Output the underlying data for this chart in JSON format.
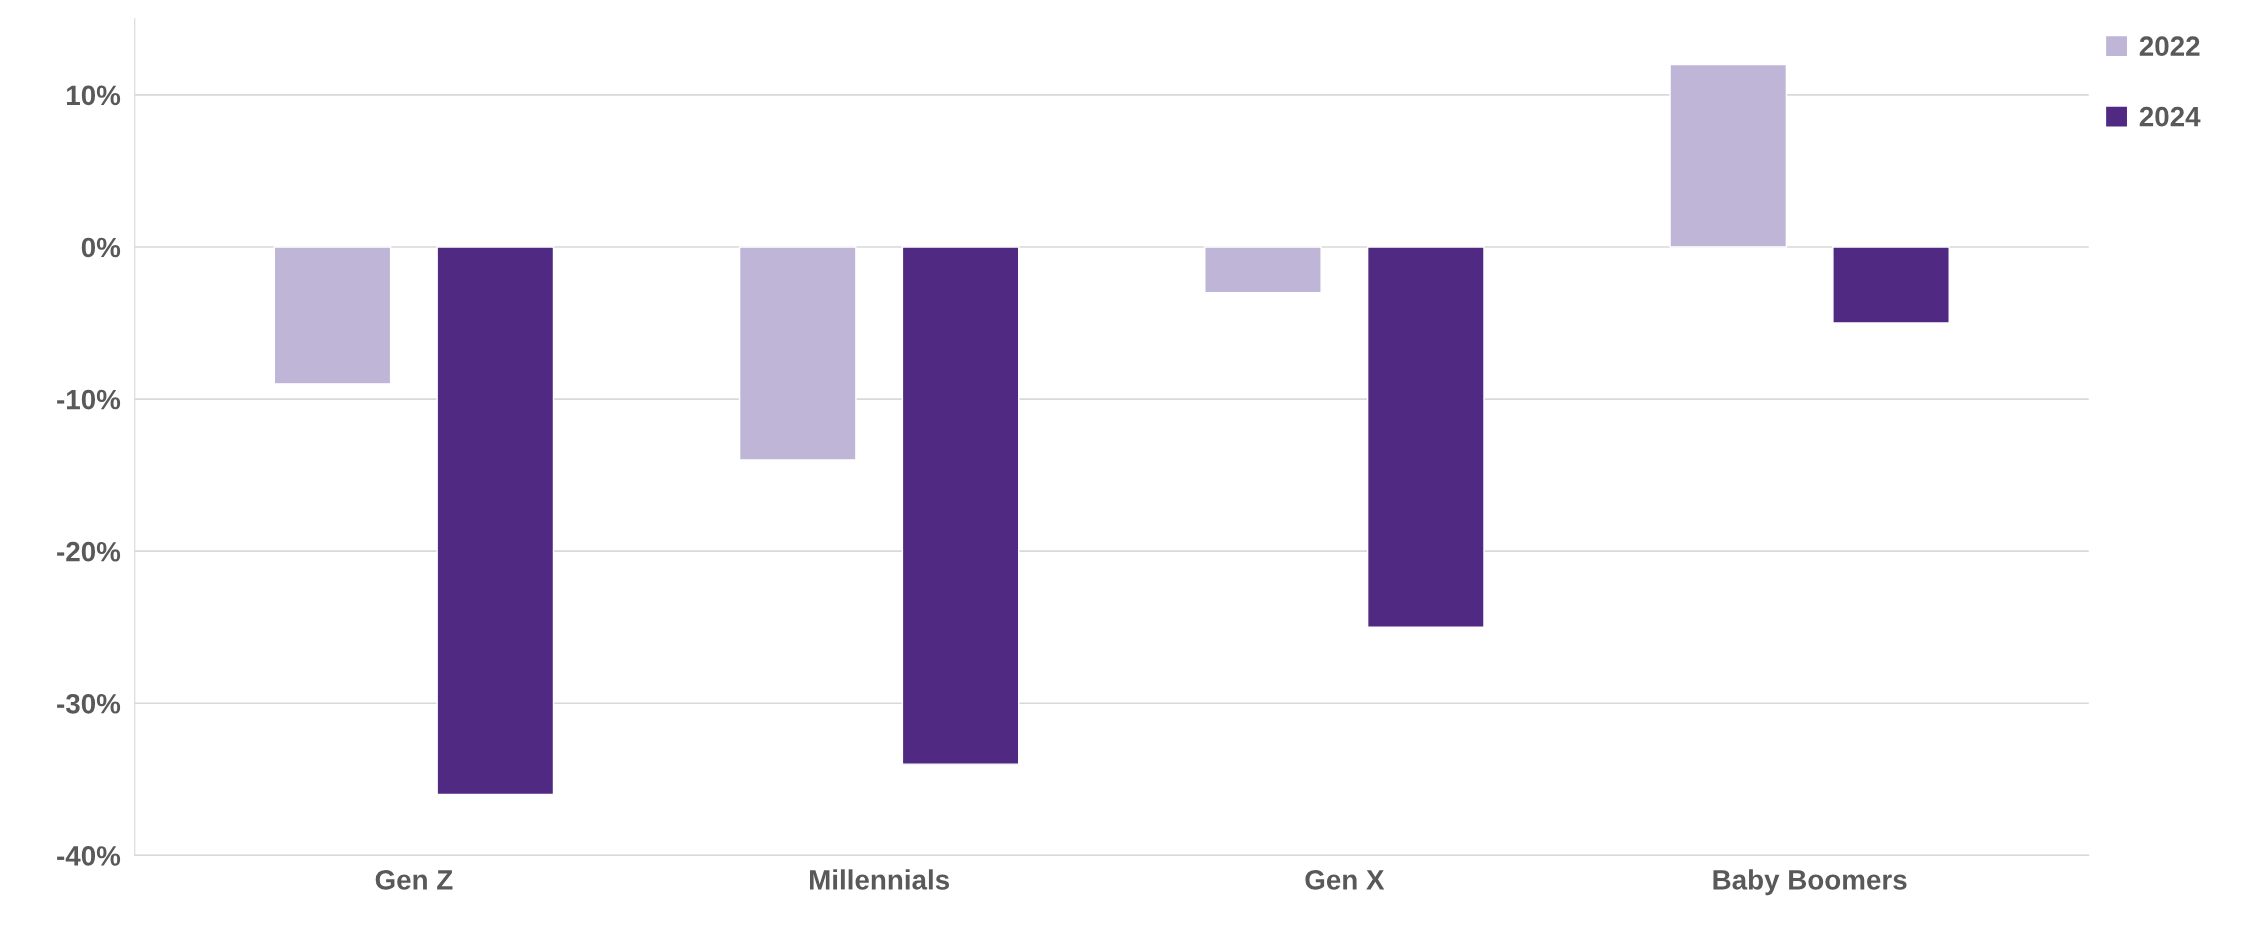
{
  "chart_data": {
    "type": "bar",
    "categories": [
      "Gen Z",
      "Millennials",
      "Gen X",
      "Baby Boomers"
    ],
    "series": [
      {
        "name": "2022",
        "color": "#bfb5d7",
        "values": [
          -9,
          -14,
          -3,
          12
        ]
      },
      {
        "name": "2024",
        "color": "#4f2982",
        "values": [
          -36,
          -34,
          -25,
          -5
        ]
      }
    ],
    "ylim": [
      -40,
      15
    ],
    "yticks": [
      {
        "value": -40,
        "label": "-40%"
      },
      {
        "value": -30,
        "label": "-30%"
      },
      {
        "value": -20,
        "label": "-20%"
      },
      {
        "value": -10,
        "label": "-10%"
      },
      {
        "value": 0,
        "label": "0%"
      },
      {
        "value": 10,
        "label": "10%"
      }
    ],
    "grid": "y",
    "legend": "top right"
  }
}
